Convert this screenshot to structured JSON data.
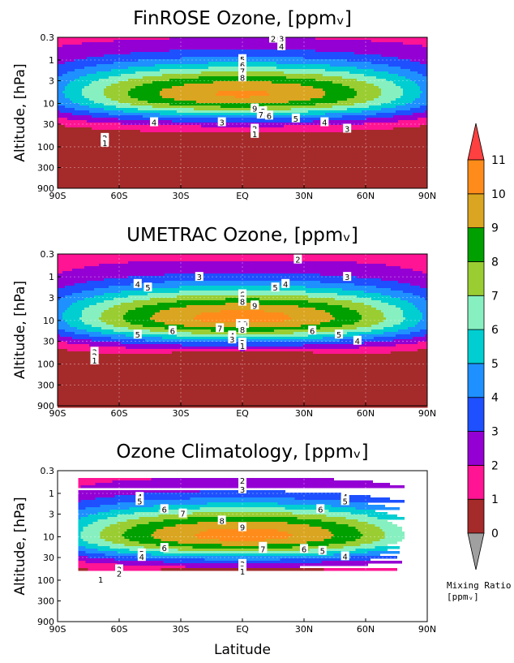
{
  "chart_data": [
    {
      "type": "contour",
      "title": "FinROSE Ozone, [ppmᵥ]",
      "xlabel": "",
      "ylabel": "Altitude, [hPa]",
      "x_ticks": [
        "90S",
        "60S",
        "30S",
        "EQ",
        "30N",
        "60N",
        "90N"
      ],
      "y_ticks": [
        "0.3",
        "1",
        "3",
        "10",
        "30",
        "100",
        "300",
        "900"
      ],
      "y_scale": "log",
      "y_inverted": true,
      "xlim": [
        -90,
        90
      ],
      "ylim": [
        900,
        0.3
      ],
      "data_extent": [
        -90,
        90
      ],
      "peak": 10,
      "peak_pressure_hPa": 6.5,
      "contour_labels": [
        {
          "text": "2",
          "lat": 15,
          "p": 0.32
        },
        {
          "text": "3",
          "lat": 19,
          "p": 0.32
        },
        {
          "text": "4",
          "lat": 19,
          "p": 0.48
        },
        {
          "text": "5",
          "lat": 0,
          "p": 0.95
        },
        {
          "text": "6",
          "lat": 0,
          "p": 1.3
        },
        {
          "text": "7",
          "lat": 0,
          "p": 1.8
        },
        {
          "text": "8",
          "lat": 0,
          "p": 2.5
        },
        {
          "text": "9",
          "lat": 6,
          "p": 13
        },
        {
          "text": "8",
          "lat": 10,
          "p": 15
        },
        {
          "text": "7",
          "lat": 9,
          "p": 18
        },
        {
          "text": "6",
          "lat": 13,
          "p": 19
        },
        {
          "text": "5",
          "lat": 26,
          "p": 22
        },
        {
          "text": "4",
          "lat": -43,
          "p": 27
        },
        {
          "text": "3",
          "lat": -10,
          "p": 27
        },
        {
          "text": "2",
          "lat": 6,
          "p": 38
        },
        {
          "text": "1",
          "lat": 6,
          "p": 50
        },
        {
          "text": "4",
          "lat": 40,
          "p": 27
        },
        {
          "text": "3",
          "lat": 51,
          "p": 38
        },
        {
          "text": "2",
          "lat": -67,
          "p": 62
        },
        {
          "text": "1",
          "lat": -67,
          "p": 80
        }
      ]
    },
    {
      "type": "contour",
      "title": "UMETRAC Ozone, [ppmᵥ]",
      "xlabel": "",
      "ylabel": "Altitude, [hPa]",
      "x_ticks": [
        "90S",
        "60S",
        "30S",
        "EQ",
        "30N",
        "60N",
        "90N"
      ],
      "y_ticks": [
        "0.3",
        "1",
        "3",
        "10",
        "30",
        "100",
        "300",
        "900"
      ],
      "y_scale": "log",
      "y_inverted": true,
      "xlim": [
        -90,
        90
      ],
      "ylim": [
        900,
        0.3
      ],
      "data_extent": [
        -90,
        90
      ],
      "peak": 10.4,
      "peak_pressure_hPa": 9,
      "contour_labels": [
        {
          "text": "2",
          "lat": 27,
          "p": 0.4
        },
        {
          "text": "3",
          "lat": -21,
          "p": 1.0
        },
        {
          "text": "3",
          "lat": 51,
          "p": 1.0
        },
        {
          "text": "4",
          "lat": -51,
          "p": 1.45
        },
        {
          "text": "5",
          "lat": -46,
          "p": 1.75
        },
        {
          "text": "4",
          "lat": 21,
          "p": 1.45
        },
        {
          "text": "5",
          "lat": 16,
          "p": 1.75
        },
        {
          "text": "6",
          "lat": 0,
          "p": 2.5
        },
        {
          "text": "7",
          "lat": 0,
          "p": 3.1
        },
        {
          "text": "8",
          "lat": 0,
          "p": 3.7
        },
        {
          "text": "9",
          "lat": 6,
          "p": 4.5
        },
        {
          "text": "10",
          "lat": 0,
          "p": 12
        },
        {
          "text": "9",
          "lat": 0,
          "p": 14
        },
        {
          "text": "8",
          "lat": 0,
          "p": 16
        },
        {
          "text": "7",
          "lat": -11,
          "p": 15
        },
        {
          "text": "6",
          "lat": -34,
          "p": 17
        },
        {
          "text": "5",
          "lat": -51,
          "p": 21
        },
        {
          "text": "6",
          "lat": 34,
          "p": 17
        },
        {
          "text": "5",
          "lat": 47,
          "p": 21
        },
        {
          "text": "4",
          "lat": -5,
          "p": 22
        },
        {
          "text": "3",
          "lat": -5,
          "p": 27
        },
        {
          "text": "4",
          "lat": 56,
          "p": 29
        },
        {
          "text": "2",
          "lat": 0,
          "p": 32
        },
        {
          "text": "1",
          "lat": 0,
          "p": 38
        },
        {
          "text": "3",
          "lat": -72,
          "p": 52
        },
        {
          "text": "2",
          "lat": -72,
          "p": 65
        },
        {
          "text": "1",
          "lat": -72,
          "p": 82
        }
      ]
    },
    {
      "type": "contour",
      "title": "Ozone Climatology, [ppmᵥ]",
      "xlabel": "Latitude",
      "ylabel": "Altitude, [hPa]",
      "x_ticks": [
        "90S",
        "60S",
        "30S",
        "EQ",
        "30N",
        "60N",
        "90N"
      ],
      "y_ticks": [
        "0.3",
        "1",
        "3",
        "10",
        "30",
        "100",
        "300",
        "900"
      ],
      "y_scale": "log",
      "y_inverted": true,
      "xlim": [
        -90,
        90
      ],
      "ylim": [
        900,
        0.3
      ],
      "data_extent": [
        -80,
        80
      ],
      "peak": 10.4,
      "peak_pressure_hPa": 9.5,
      "contour_labels": [
        {
          "text": "2",
          "lat": 0,
          "p": 0.5
        },
        {
          "text": "3",
          "lat": 0,
          "p": 0.8
        },
        {
          "text": "4",
          "lat": -50,
          "p": 1.2
        },
        {
          "text": "5",
          "lat": -50,
          "p": 1.5
        },
        {
          "text": "4",
          "lat": 50,
          "p": 1.2
        },
        {
          "text": "5",
          "lat": 50,
          "p": 1.5
        },
        {
          "text": "6",
          "lat": -38,
          "p": 2.3
        },
        {
          "text": "7",
          "lat": -29,
          "p": 2.9
        },
        {
          "text": "6",
          "lat": 38,
          "p": 2.3
        },
        {
          "text": "8",
          "lat": -10,
          "p": 4.2
        },
        {
          "text": "9",
          "lat": 0,
          "p": 6
        },
        {
          "text": "8",
          "lat": 10,
          "p": 17
        },
        {
          "text": "7",
          "lat": 10,
          "p": 19
        },
        {
          "text": "6",
          "lat": -38,
          "p": 18
        },
        {
          "text": "6",
          "lat": 30,
          "p": 19
        },
        {
          "text": "5",
          "lat": 39,
          "p": 21
        },
        {
          "text": "5",
          "lat": -49,
          "p": 24
        },
        {
          "text": "4",
          "lat": -49,
          "p": 29
        },
        {
          "text": "4",
          "lat": 50,
          "p": 28
        },
        {
          "text": "3",
          "lat": 0,
          "p": 42
        },
        {
          "text": "2",
          "lat": 0,
          "p": 52
        },
        {
          "text": "1",
          "lat": 0,
          "p": 62
        },
        {
          "text": "3",
          "lat": -60,
          "p": 56
        },
        {
          "text": "2",
          "lat": -60,
          "p": 70
        },
        {
          "text": "1",
          "lat": -69,
          "p": 95
        }
      ]
    }
  ],
  "colorbar": {
    "title_line1": "Mixing Ratio",
    "title_line2": "[ppmᵥ]",
    "levels": [
      "0",
      "1",
      "2",
      "3",
      "4",
      "5",
      "6",
      "7",
      "8",
      "9",
      "10",
      "11"
    ],
    "colors": [
      "#a52a2a",
      "#ff1493",
      "#9400d3",
      "#1e50ff",
      "#1e90ff",
      "#00ced1",
      "#87f0c0",
      "#9acd32",
      "#00a000",
      "#daa520",
      "#ff8c1a",
      "#ff4040"
    ],
    "under_color": "#a0a0a0",
    "over_color": "#ff4040"
  }
}
